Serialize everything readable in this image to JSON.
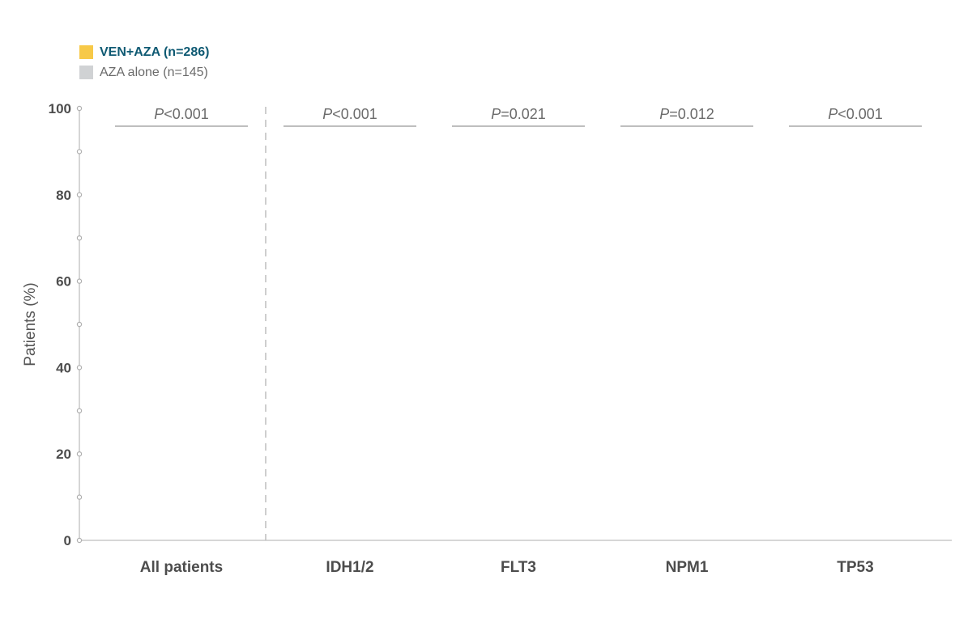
{
  "legend": {
    "items": [
      {
        "label": "VEN+AZA (n=286)",
        "color": "#f7c948"
      },
      {
        "label": "AZA alone (n=145)",
        "color": "#d0d2d4"
      }
    ]
  },
  "chart_data": {
    "type": "bar",
    "categories": [
      "All patients",
      "IDH1/2",
      "FLT3",
      "NPM1",
      "TP53"
    ],
    "series": [
      {
        "name": "VEN+AZA (n=286)",
        "color": "#f7c948",
        "values": [
          null,
          null,
          null,
          null,
          null
        ]
      },
      {
        "name": "AZA alone (n=145)",
        "color": "#d0d2d4",
        "values": [
          null,
          null,
          null,
          null,
          null
        ]
      }
    ],
    "ylabel": "Patients (%)",
    "xlabel": "",
    "ylim": [
      0,
      100
    ],
    "yticks": [
      0,
      20,
      40,
      60,
      80,
      100
    ],
    "y_minor_ticks": [
      10,
      30,
      50,
      70,
      90
    ],
    "grid": false,
    "legend_position": "top-left",
    "separator_after_category": "All patients",
    "annotations": [
      {
        "category": "All patients",
        "p_symbol": "P",
        "p_rest": "<0.001"
      },
      {
        "category": "IDH1/2",
        "p_symbol": "P",
        "p_rest": "<0.001"
      },
      {
        "category": "FLT3",
        "p_symbol": "P",
        "p_rest": "=0.021"
      },
      {
        "category": "NPM1",
        "p_symbol": "P",
        "p_rest": "=0.012"
      },
      {
        "category": "TP53",
        "p_symbol": "P",
        "p_rest": "<0.001"
      }
    ]
  }
}
